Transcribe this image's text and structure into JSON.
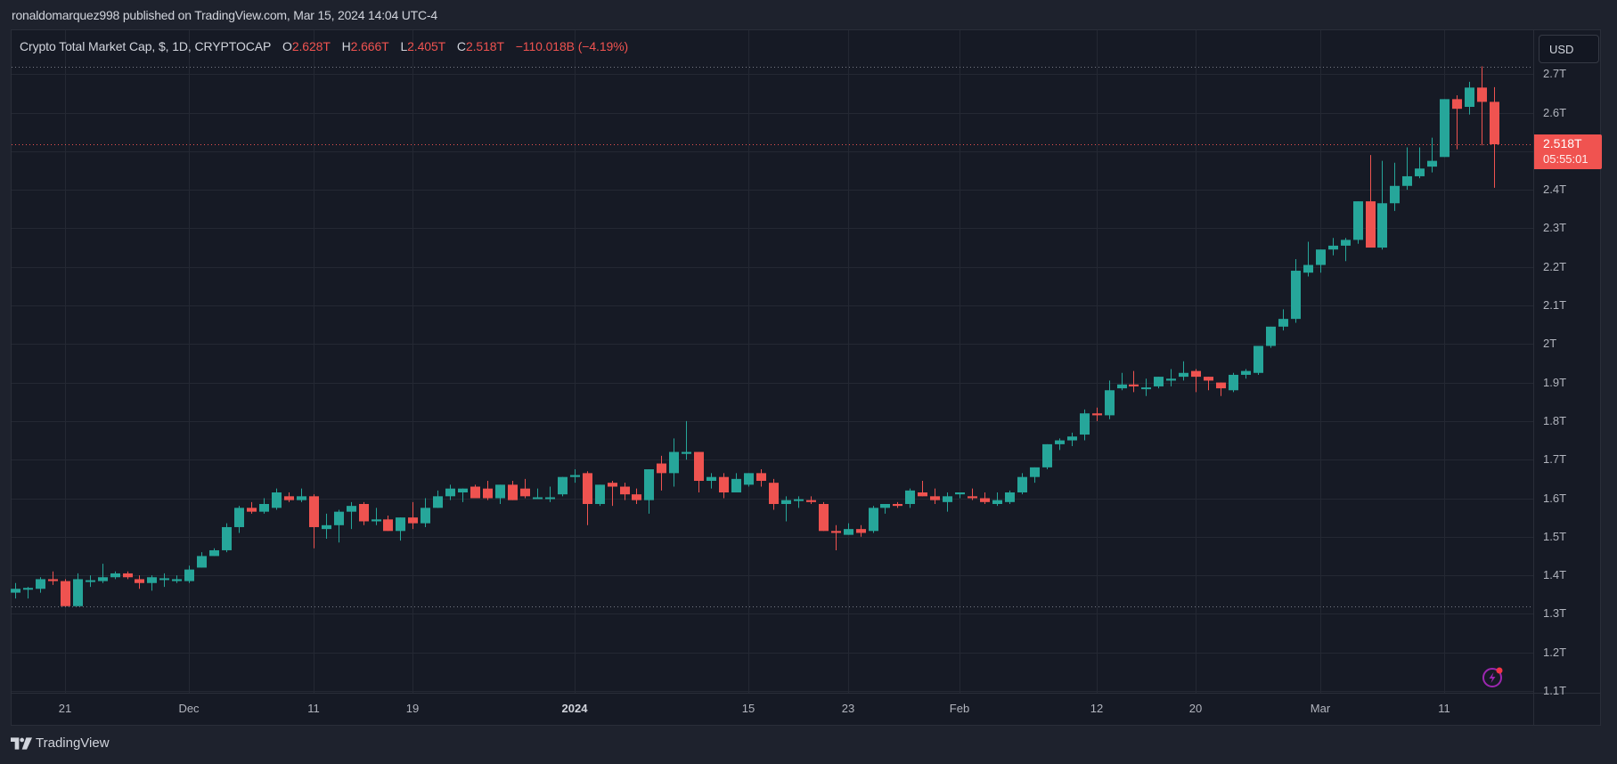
{
  "header": {
    "publisher_text": "ronaldomarquez998 published on TradingView.com, Mar 15, 2024 14:04 UTC-4"
  },
  "legend": {
    "symbol": "Crypto Total Market Cap, $, 1D, CRYPTOCAP",
    "open_label": "O",
    "open_value": "2.628T",
    "high_label": "H",
    "high_value": "2.666T",
    "low_label": "L",
    "low_value": "2.405T",
    "close_label": "C",
    "close_value": "2.518T",
    "change": "−110.018B (−4.19%)"
  },
  "currency_button": "USD",
  "last_price": {
    "value": "2.518T",
    "countdown": "05:55:01"
  },
  "footer": {
    "brand": "TradingView"
  },
  "icons": {
    "logo": "tradingview-logo-icon",
    "bolt": "lightning-icon"
  },
  "colors": {
    "up": "#26a69a",
    "down": "#ef5350",
    "background": "#161a25",
    "grid": "#242833",
    "text": "#b2b5be",
    "bolt": "#9c27b0"
  },
  "chart_data": {
    "type": "candlestick",
    "title": "Crypto Total Market Cap, $, 1D, CRYPTOCAP",
    "xlabel": "",
    "ylabel": "USD",
    "ylim": [
      1.1,
      2.7
    ],
    "y_ticks": [
      "2.7T",
      "2.6T",
      "2.5T",
      "2.4T",
      "2.3T",
      "2.2T",
      "2.1T",
      "2T",
      "1.9T",
      "1.8T",
      "1.7T",
      "1.6T",
      "1.5T",
      "1.4T",
      "1.3T",
      "1.2T",
      "1.1T"
    ],
    "y_tick_values": [
      2.7,
      2.6,
      2.5,
      2.4,
      2.3,
      2.2,
      2.1,
      2.0,
      1.9,
      1.8,
      1.7,
      1.6,
      1.5,
      1.4,
      1.3,
      1.2,
      1.1
    ],
    "x_ticks": [
      {
        "label": "21",
        "day": 4
      },
      {
        "label": "Dec",
        "day": 14
      },
      {
        "label": "11",
        "day": 24
      },
      {
        "label": "19",
        "day": 32
      },
      {
        "label": "2024",
        "day": 45,
        "bold": true
      },
      {
        "label": "15",
        "day": 59
      },
      {
        "label": "23",
        "day": 67
      },
      {
        "label": "Feb",
        "day": 76
      },
      {
        "label": "12",
        "day": 87
      },
      {
        "label": "20",
        "day": 95
      },
      {
        "label": "Mar",
        "day": 105
      },
      {
        "label": "11",
        "day": 115
      }
    ],
    "first_date": "2023-11-17",
    "last_date": "2024-03-15",
    "reference_lines": {
      "high": 2.72,
      "low": 1.32,
      "last": 2.518
    },
    "candles_ohlc": [
      [
        1.355,
        1.38,
        1.34,
        1.365
      ],
      [
        1.365,
        1.37,
        1.34,
        1.365
      ],
      [
        1.365,
        1.395,
        1.355,
        1.39
      ],
      [
        1.39,
        1.41,
        1.375,
        1.385
      ],
      [
        1.385,
        1.39,
        1.32,
        1.32
      ],
      [
        1.32,
        1.405,
        1.32,
        1.39
      ],
      [
        1.385,
        1.4,
        1.37,
        1.385
      ],
      [
        1.385,
        1.43,
        1.38,
        1.395
      ],
      [
        1.395,
        1.41,
        1.39,
        1.405
      ],
      [
        1.405,
        1.41,
        1.39,
        1.395
      ],
      [
        1.39,
        1.4,
        1.365,
        1.38
      ],
      [
        1.38,
        1.4,
        1.36,
        1.395
      ],
      [
        1.39,
        1.405,
        1.37,
        1.39
      ],
      [
        1.385,
        1.4,
        1.38,
        1.39
      ],
      [
        1.385,
        1.425,
        1.38,
        1.415
      ],
      [
        1.42,
        1.46,
        1.42,
        1.45
      ],
      [
        1.45,
        1.47,
        1.45,
        1.465
      ],
      [
        1.465,
        1.535,
        1.46,
        1.525
      ],
      [
        1.525,
        1.58,
        1.51,
        1.575
      ],
      [
        1.575,
        1.59,
        1.56,
        1.565
      ],
      [
        1.565,
        1.6,
        1.56,
        1.585
      ],
      [
        1.575,
        1.625,
        1.57,
        1.615
      ],
      [
        1.605,
        1.615,
        1.59,
        1.595
      ],
      [
        1.595,
        1.625,
        1.59,
        1.605
      ],
      [
        1.605,
        1.61,
        1.47,
        1.525
      ],
      [
        1.52,
        1.56,
        1.495,
        1.53
      ],
      [
        1.53,
        1.57,
        1.485,
        1.565
      ],
      [
        1.565,
        1.59,
        1.52,
        1.58
      ],
      [
        1.585,
        1.59,
        1.53,
        1.54
      ],
      [
        1.54,
        1.575,
        1.53,
        1.545
      ],
      [
        1.545,
        1.555,
        1.515,
        1.515
      ],
      [
        1.515,
        1.55,
        1.49,
        1.55
      ],
      [
        1.55,
        1.59,
        1.52,
        1.535
      ],
      [
        1.535,
        1.6,
        1.525,
        1.575
      ],
      [
        1.575,
        1.62,
        1.575,
        1.605
      ],
      [
        1.605,
        1.635,
        1.595,
        1.625
      ],
      [
        1.615,
        1.625,
        1.59,
        1.625
      ],
      [
        1.63,
        1.635,
        1.605,
        1.6
      ],
      [
        1.625,
        1.645,
        1.595,
        1.6
      ],
      [
        1.6,
        1.635,
        1.585,
        1.635
      ],
      [
        1.635,
        1.645,
        1.605,
        1.595
      ],
      [
        1.625,
        1.65,
        1.6,
        1.605
      ],
      [
        1.6,
        1.625,
        1.6,
        1.6
      ],
      [
        1.6,
        1.63,
        1.59,
        1.6
      ],
      [
        1.61,
        1.655,
        1.605,
        1.655
      ],
      [
        1.655,
        1.675,
        1.64,
        1.66
      ],
      [
        1.665,
        1.67,
        1.53,
        1.585
      ],
      [
        1.585,
        1.635,
        1.58,
        1.635
      ],
      [
        1.64,
        1.645,
        1.58,
        1.63
      ],
      [
        1.63,
        1.64,
        1.595,
        1.61
      ],
      [
        1.61,
        1.625,
        1.585,
        1.595
      ],
      [
        1.595,
        1.66,
        1.56,
        1.675
      ],
      [
        1.69,
        1.71,
        1.62,
        1.665
      ],
      [
        1.665,
        1.755,
        1.63,
        1.72
      ],
      [
        1.715,
        1.8,
        1.7,
        1.72
      ],
      [
        1.72,
        1.71,
        1.615,
        1.645
      ],
      [
        1.645,
        1.665,
        1.625,
        1.655
      ],
      [
        1.655,
        1.665,
        1.6,
        1.615
      ],
      [
        1.615,
        1.665,
        1.615,
        1.65
      ],
      [
        1.635,
        1.665,
        1.63,
        1.665
      ],
      [
        1.665,
        1.675,
        1.63,
        1.645
      ],
      [
        1.64,
        1.65,
        1.57,
        1.585
      ],
      [
        1.585,
        1.605,
        1.54,
        1.595
      ],
      [
        1.595,
        1.605,
        1.575,
        1.595
      ],
      [
        1.595,
        1.605,
        1.585,
        1.59
      ],
      [
        1.585,
        1.59,
        1.515,
        1.515
      ],
      [
        1.515,
        1.53,
        1.465,
        1.51
      ],
      [
        1.505,
        1.535,
        1.505,
        1.52
      ],
      [
        1.52,
        1.53,
        1.5,
        1.51
      ],
      [
        1.515,
        1.58,
        1.51,
        1.575
      ],
      [
        1.575,
        1.585,
        1.56,
        1.585
      ],
      [
        1.585,
        1.59,
        1.575,
        1.58
      ],
      [
        1.585,
        1.625,
        1.575,
        1.62
      ],
      [
        1.615,
        1.645,
        1.605,
        1.605
      ],
      [
        1.605,
        1.625,
        1.585,
        1.595
      ],
      [
        1.59,
        1.615,
        1.565,
        1.605
      ],
      [
        1.61,
        1.615,
        1.6,
        1.615
      ],
      [
        1.605,
        1.625,
        1.595,
        1.6
      ],
      [
        1.6,
        1.615,
        1.585,
        1.59
      ],
      [
        1.585,
        1.615,
        1.58,
        1.595
      ],
      [
        1.59,
        1.62,
        1.585,
        1.615
      ],
      [
        1.615,
        1.665,
        1.61,
        1.655
      ],
      [
        1.655,
        1.665,
        1.64,
        1.68
      ],
      [
        1.68,
        1.735,
        1.675,
        1.74
      ],
      [
        1.74,
        1.755,
        1.725,
        1.75
      ],
      [
        1.75,
        1.77,
        1.735,
        1.76
      ],
      [
        1.765,
        1.83,
        1.75,
        1.82
      ],
      [
        1.82,
        1.835,
        1.8,
        1.815
      ],
      [
        1.815,
        1.905,
        1.805,
        1.88
      ],
      [
        1.885,
        1.925,
        1.88,
        1.895
      ],
      [
        1.895,
        1.93,
        1.875,
        1.89
      ],
      [
        1.885,
        1.91,
        1.865,
        1.885
      ],
      [
        1.89,
        1.915,
        1.885,
        1.915
      ],
      [
        1.905,
        1.935,
        1.89,
        1.91
      ],
      [
        1.915,
        1.955,
        1.905,
        1.925
      ],
      [
        1.93,
        1.935,
        1.875,
        1.915
      ],
      [
        1.915,
        1.915,
        1.88,
        1.905
      ],
      [
        1.9,
        1.895,
        1.865,
        1.885
      ],
      [
        1.88,
        1.925,
        1.875,
        1.92
      ],
      [
        1.92,
        1.935,
        1.91,
        1.93
      ],
      [
        1.925,
        1.995,
        1.92,
        1.995
      ],
      [
        1.995,
        2.04,
        1.99,
        2.045
      ],
      [
        2.045,
        2.09,
        2.035,
        2.065
      ],
      [
        2.065,
        2.22,
        2.055,
        2.19
      ],
      [
        2.185,
        2.265,
        2.175,
        2.205
      ],
      [
        2.205,
        2.245,
        2.185,
        2.245
      ],
      [
        2.245,
        2.275,
        2.23,
        2.255
      ],
      [
        2.255,
        2.275,
        2.215,
        2.27
      ],
      [
        2.27,
        2.36,
        2.26,
        2.37
      ],
      [
        2.37,
        2.49,
        2.26,
        2.25
      ],
      [
        2.25,
        2.475,
        2.245,
        2.365
      ],
      [
        2.365,
        2.47,
        2.345,
        2.41
      ],
      [
        2.41,
        2.51,
        2.4,
        2.435
      ],
      [
        2.435,
        2.51,
        2.43,
        2.455
      ],
      [
        2.46,
        2.535,
        2.445,
        2.475
      ],
      [
        2.485,
        2.585,
        2.485,
        2.635
      ],
      [
        2.635,
        2.645,
        2.505,
        2.61
      ],
      [
        2.615,
        2.68,
        2.595,
        2.665
      ],
      [
        2.665,
        2.72,
        2.515,
        2.628
      ],
      [
        2.628,
        2.666,
        2.405,
        2.518
      ]
    ]
  }
}
